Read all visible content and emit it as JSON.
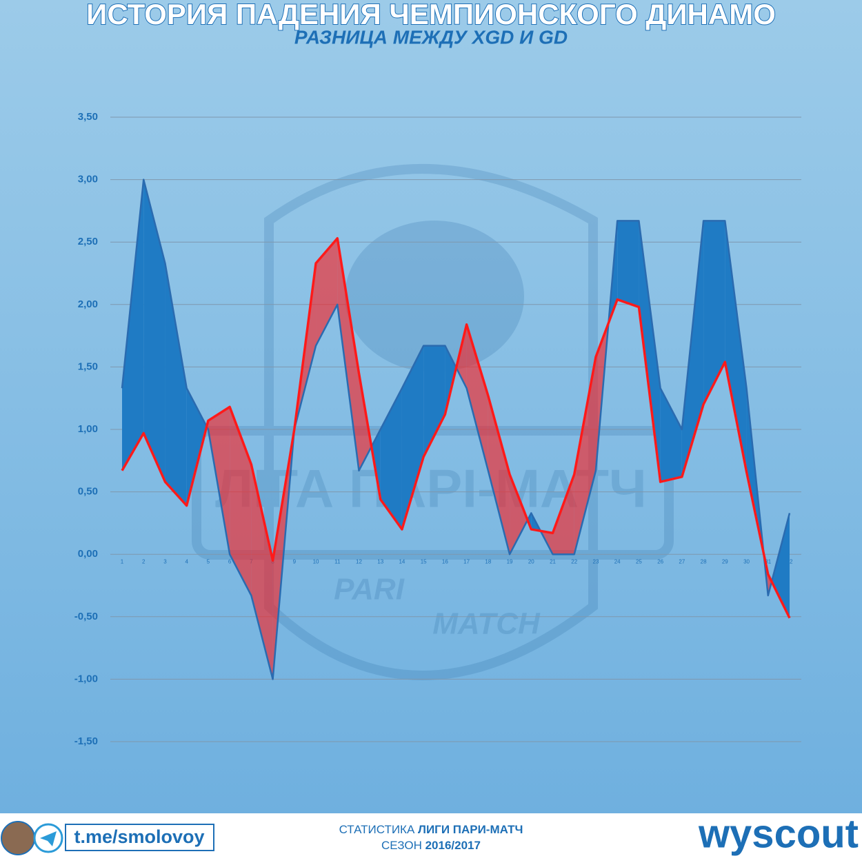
{
  "chart_data": {
    "type": "area-diff",
    "title": "ИСТОРИЯ ПАДЕНИЯ ЧЕМПИОНСКОГО ДИНАМО",
    "subtitle": "РАЗНИЦА МЕЖДУ XGD И GD",
    "categories": [
      "1",
      "2",
      "3",
      "4",
      "5",
      "6",
      "7",
      "8",
      "9",
      "10",
      "11",
      "12",
      "13",
      "14",
      "15",
      "16",
      "17",
      "18",
      "19",
      "20",
      "21",
      "22",
      "23",
      "24",
      "25",
      "26",
      "27",
      "28",
      "29",
      "30",
      "31",
      "32"
    ],
    "series": [
      {
        "color": "#1f7bc4",
        "values": [
          1.33,
          3.0,
          2.33,
          1.33,
          1.0,
          0,
          -0.33,
          -1.0,
          1.0,
          1.67,
          2.0,
          0.67,
          1.0,
          1.33,
          1.67,
          1.67,
          1.33,
          0.67,
          0,
          0.33,
          0,
          0,
          0.67,
          2.67,
          2.67,
          1.33,
          1.0,
          2.67,
          2.67,
          1.33,
          -0.33,
          0.33
        ]
      },
      {
        "color": "#ff1a1a",
        "values": [
          0.67,
          0.97,
          0.58,
          0.39,
          1.07,
          1.18,
          0.72,
          -0.05,
          1.0,
          2.33,
          2.53,
          1.45,
          0.44,
          0.2,
          0.78,
          1.12,
          1.84,
          1.27,
          0.64,
          0.2,
          0.17,
          0.64,
          1.58,
          2.04,
          1.98,
          0.58,
          0.62,
          1.2,
          1.54,
          0.66,
          -0.16,
          -0.51
        ]
      }
    ],
    "ylim": [
      -1.5,
      3.5
    ],
    "yticks": [
      {
        "value": 3.5,
        "label": "3,50"
      },
      {
        "value": 3,
        "label": "3,00"
      },
      {
        "value": 2.5,
        "label": "2,50"
      },
      {
        "value": 2,
        "label": "2,00"
      },
      {
        "value": 1.5,
        "label": "1,50"
      },
      {
        "value": 1,
        "label": "1,00"
      },
      {
        "value": 0.5,
        "label": "0,50"
      },
      {
        "value": 0,
        "label": "0,00"
      },
      {
        "value": -0.5,
        "label": "-0,50"
      },
      {
        "value": -1,
        "label": "-1,00"
      },
      {
        "value": -1.5,
        "label": "-1,50"
      }
    ],
    "grid": true
  },
  "watermark": {
    "league": "ЛІГА ПАРІ-МАТЧ",
    "pari": "PARI",
    "match": "MATCH"
  },
  "footer": {
    "telegram": "t.me/smolovoy",
    "stat_prefix": "СТАТИСТИКА",
    "stat_league": "ЛИГИ ПАРИ-МАТЧ",
    "season_prefix": "СЕЗОН",
    "season": "2016/2017",
    "brand": "wyscout"
  }
}
